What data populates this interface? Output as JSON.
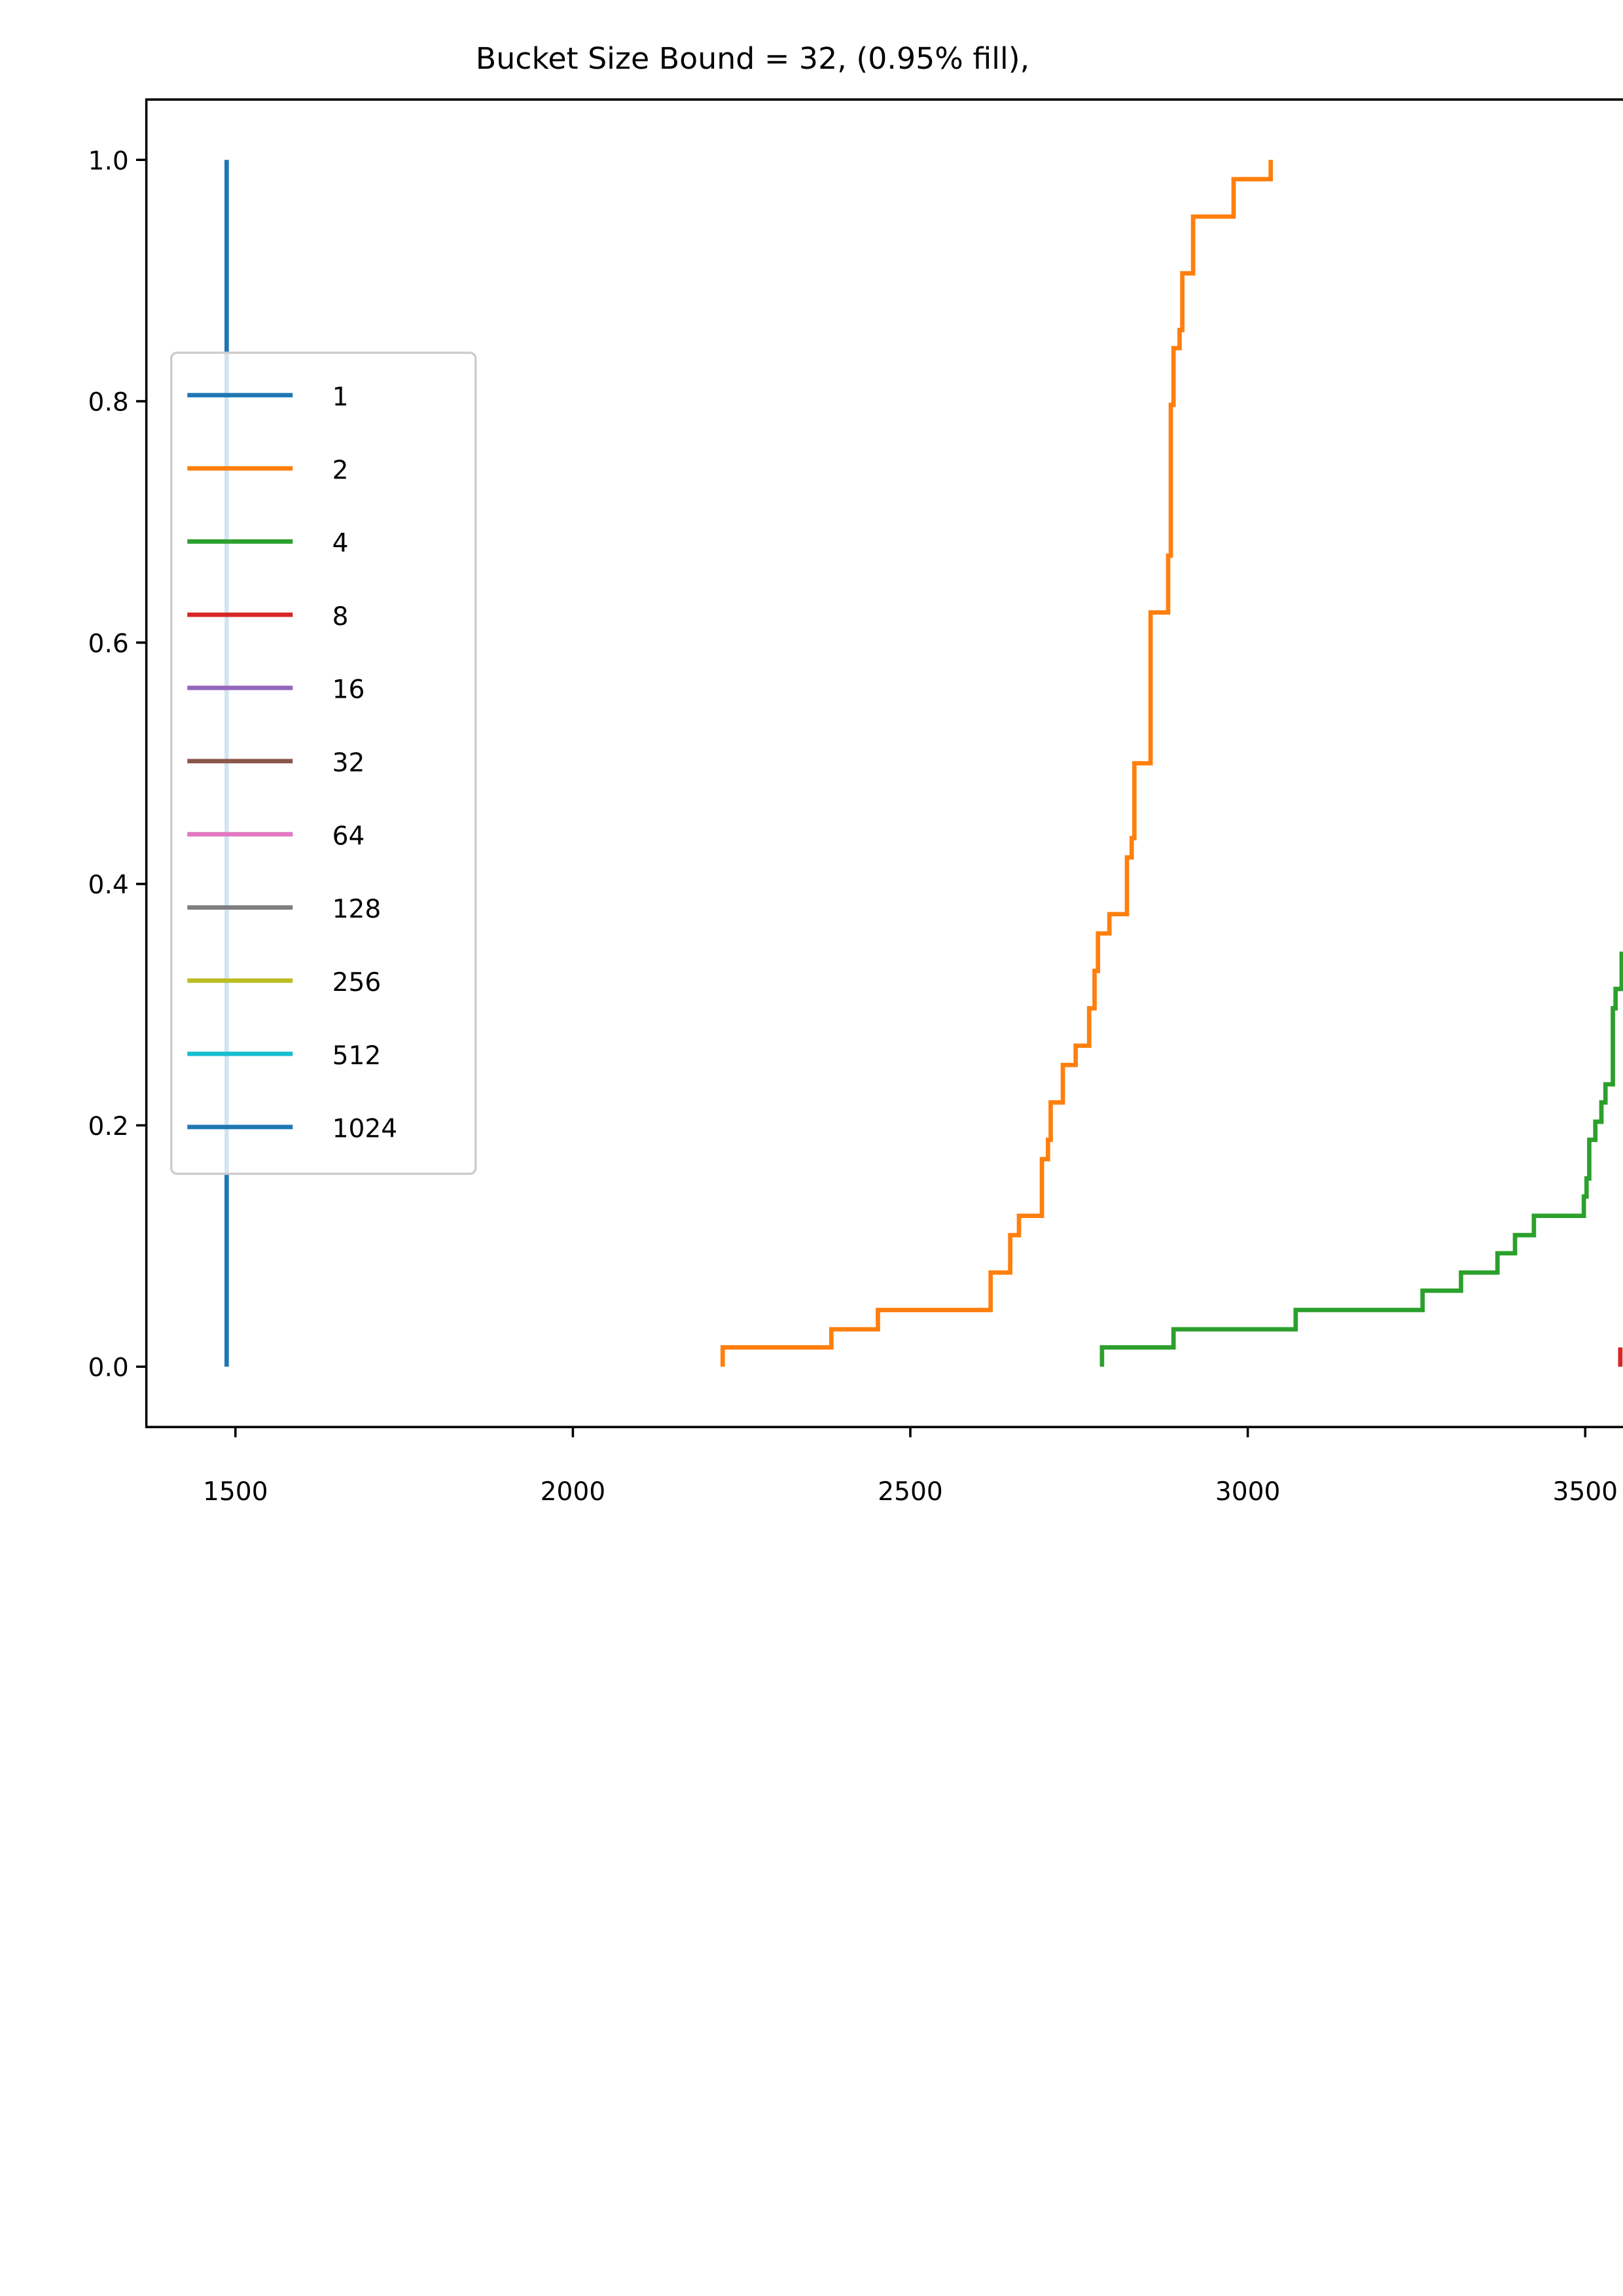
{
  "chart_data": {
    "type": "step",
    "title": "Bucket Size Bound = 32, (0.95% fill),",
    "xlim": [
      1368,
      3556
    ],
    "ylim": [
      -0.05,
      1.05
    ],
    "xticks": [
      1500,
      2000,
      2500,
      3000,
      3500
    ],
    "yticks": [
      {
        "value": 0,
        "label": "0.0"
      },
      {
        "value": 0.2,
        "label": "0.2"
      },
      {
        "value": 0.4,
        "label": "0.4"
      },
      {
        "value": 0.6,
        "label": "0.6"
      },
      {
        "value": 0.8,
        "label": "0.8"
      },
      {
        "value": 1,
        "label": "1.0"
      }
    ],
    "legend": "center left",
    "series": [
      {
        "name": "1",
        "color": "#1f77b4",
        "x": [
          1487,
          1487
        ],
        "values": [
          0,
          1
        ]
      },
      {
        "name": "2",
        "color": "#ff7f0e",
        "x": [
          2222,
          2222,
          2383,
          2452,
          2619,
          2648,
          2661,
          2695,
          2704,
          2708,
          2726,
          2745,
          2765,
          2773,
          2778,
          2795,
          2821,
          2828,
          2832,
          2856,
          2882,
          2886,
          2890,
          2899,
          2903,
          2919,
          2979,
          3034
        ],
        "values": [
          0,
          0.016,
          0.031,
          0.047,
          0.078,
          0.109,
          0.125,
          0.172,
          0.188,
          0.219,
          0.25,
          0.266,
          0.297,
          0.328,
          0.359,
          0.375,
          0.422,
          0.438,
          0.5,
          0.625,
          0.672,
          0.797,
          0.844,
          0.859,
          0.906,
          0.953,
          0.984,
          1
        ]
      },
      {
        "name": "4",
        "color": "#2ca02c",
        "x": [
          2784,
          2784,
          2890,
          3071,
          3259,
          3316,
          3370,
          3396,
          3424,
          3498,
          3502,
          3506,
          3515,
          3524,
          3530,
          3541,
          3545,
          3554
        ],
        "values": [
          0,
          0.016,
          0.031,
          0.047,
          0.063,
          0.078,
          0.094,
          0.109,
          0.125,
          0.141,
          0.156,
          0.188,
          0.203,
          0.219,
          0.234,
          0.297,
          0.313,
          0.344
        ]
      },
      {
        "name": "8",
        "color": "#d62728",
        "x": [
          3552,
          3552
        ],
        "values": [
          0,
          0.016
        ]
      },
      {
        "name": "16",
        "color": "#9467bd",
        "x": [],
        "values": []
      },
      {
        "name": "32",
        "color": "#8c564b",
        "x": [],
        "values": []
      },
      {
        "name": "64",
        "color": "#e377c2",
        "x": [],
        "values": []
      },
      {
        "name": "128",
        "color": "#7f7f7f",
        "x": [],
        "values": []
      },
      {
        "name": "256",
        "color": "#bcbd22",
        "x": [],
        "values": []
      },
      {
        "name": "512",
        "color": "#17becf",
        "x": [],
        "values": []
      },
      {
        "name": "1024",
        "color": "#1f77b4",
        "x": [],
        "values": []
      }
    ]
  }
}
